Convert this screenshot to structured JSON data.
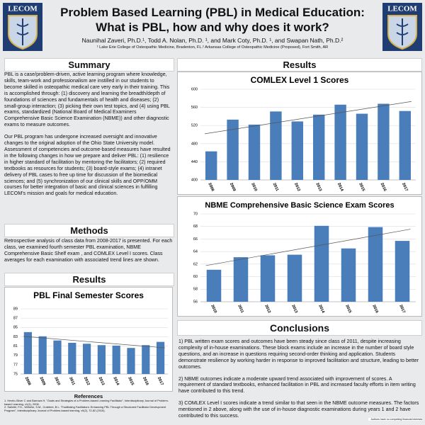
{
  "header": {
    "title_line1": "Problem Based Learning (PBL) in Medical Education:",
    "title_line2": "What is PBL, how and why does it work?",
    "authors": "Naunihal Zaveri, Ph.D.¹, Todd A. Nolan, Ph.D. ¹, and Mark Coty, Ph.D. ¹, and Swapan Nath, Ph.D.²",
    "affiliations": "¹ Lake Erie College of Osteopathic Medicine, Bradenton, FL.² Arkansas College of Osteopathic Medicine (Proposed), Fort Smith, AR",
    "logos": [
      "LECOM",
      "LECOM"
    ]
  },
  "summary": {
    "heading": "Summary",
    "paragraphs": [
      "PBL is a case/problem-driven, active learning program where knowledge, skills, team-work and professionalism are instilled in our students to become skilled in osteopathic medical care very early in their training. This is accomplished through: (1) discovery and learning the breadth/depth of foundations of sciences and fundamentals of health and diseases; (2) small-group interaction; (3) picking their own test topics, and (4) using PBL exams, standardized (National Board of Medical Examiners Comprehensive Basic Science Examination (NBME)) and other diagnostic exams to measure outcomes.",
      "Our PBL program  has undergone increased oversight and innovative changes to the original adoption of the Ohio State University model. Assessment of competencies and outcome-based measures have resulted in the following changes in how we prepare and deliver PBL: (1) resilience in higher standard of facilitation by mentoring the facilitators; (2) required textbooks as resources for students; (3) board-style exams; (4) intranet delivery of PBL cases to free up time for discussion of the biomedical sciences; and (5) synchronization of our clinical skills and OPP/OMM  courses for better integration of basic and clinical sciences in fulfilling LECOM's mission and goals for medical education."
    ]
  },
  "methods": {
    "heading": "Methods",
    "text": "Retrospective analysis of class data from 2008-2017 is presented. For each class, we examined fourth semester PBL examination, NBME Comprehensive Basic Shelf exam , and COMLEX Level I scores.  Class averages for each examination with associated trend lines are shown."
  },
  "results_headings": [
    "Results",
    "Results"
  ],
  "conclusions": {
    "heading": "Conclusions",
    "items": [
      "1)  PBL written exam scores and outcomes have been steady since class of 2011, despite increasing complexity of in-house examinations. These block exams include an increase in the number of board style questions, and an increase in questions requiring second-order thinking and application. Students demonstrate resilience by working harder in response to improved facilitation and structure, leading to better outcomes.",
      "2)  NBME outcomes indicate a moderate upward trend associated with improvement of scores. A requirement of standard textbooks, enhanced facilitation in PBL and increased faculty efforts in item writing have contributed to this trend.",
      "3)  COMLEX Level I scores indicate a trend similar to that seen in the NBME outcome measures.  The factors mentioned in 2 above, along with the use of in-house diagnostic examinations during years 1 and 2 have contributed to this success."
    ]
  },
  "references": {
    "heading": "References",
    "items": [
      "1.  Hmelo-Silver C and Barrows H, \"Goals and Strategies of a Problem-based Learning Facilitator\", Interdisciplinary Journal of Problem-based Learning, v1(1), 2006.",
      "2.  Salinitri, F.D., Wilhelm, S.M., Crabtree, B.L. \"Facilitating Facilitators: Enhancing PBL Through a Structured Facilitator Development Program\", Interdisciplinary Journal of Problem-based learning, v9(2), 72-82 (2015)."
    ]
  },
  "footer": "Authors have no competing financial interests",
  "chart_data": [
    {
      "type": "bar",
      "title": "COMLEX Level 1 Scores",
      "categories": [
        "2008",
        "2009",
        "2010",
        "2011",
        "2012",
        "2013",
        "2014",
        "2015",
        "2016",
        "2017"
      ],
      "values": [
        463,
        533,
        522,
        551,
        529,
        544,
        566,
        546,
        568,
        552
      ],
      "color": "#4a7ebb",
      "trendline": true,
      "ylim": [
        400,
        600
      ],
      "yticks": [
        400,
        440,
        480,
        520,
        560,
        600
      ],
      "grid": true
    },
    {
      "type": "bar",
      "title": "NBME Comprehensive Basic Science Exam Scores",
      "categories": [
        "2010",
        "2011",
        "2012",
        "2013",
        "2014",
        "2015",
        "2016",
        "2017"
      ],
      "values": [
        61.1,
        63.1,
        63.4,
        63.5,
        68.1,
        64.5,
        67.9,
        65.7
      ],
      "color": "#4a7ebb",
      "trendline": true,
      "ylim": [
        56,
        70
      ],
      "yticks": [
        56,
        58,
        60,
        62,
        64,
        66,
        68,
        70
      ],
      "grid": true
    },
    {
      "type": "bar",
      "title": "PBL Final Semester Scores",
      "categories": [
        "2008",
        "2009",
        "2010",
        "2011",
        "2012",
        "2013",
        "2014",
        "2015",
        "2016",
        "2017"
      ],
      "values": [
        84.0,
        83.1,
        82.2,
        81.7,
        81.5,
        81.2,
        81.1,
        80.6,
        81.2,
        81.9
      ],
      "color": "#4a7ebb",
      "trendline": true,
      "ylim": [
        75,
        89
      ],
      "yticks": [
        75,
        77,
        79,
        81,
        83,
        85,
        87,
        89
      ],
      "grid": true
    }
  ]
}
